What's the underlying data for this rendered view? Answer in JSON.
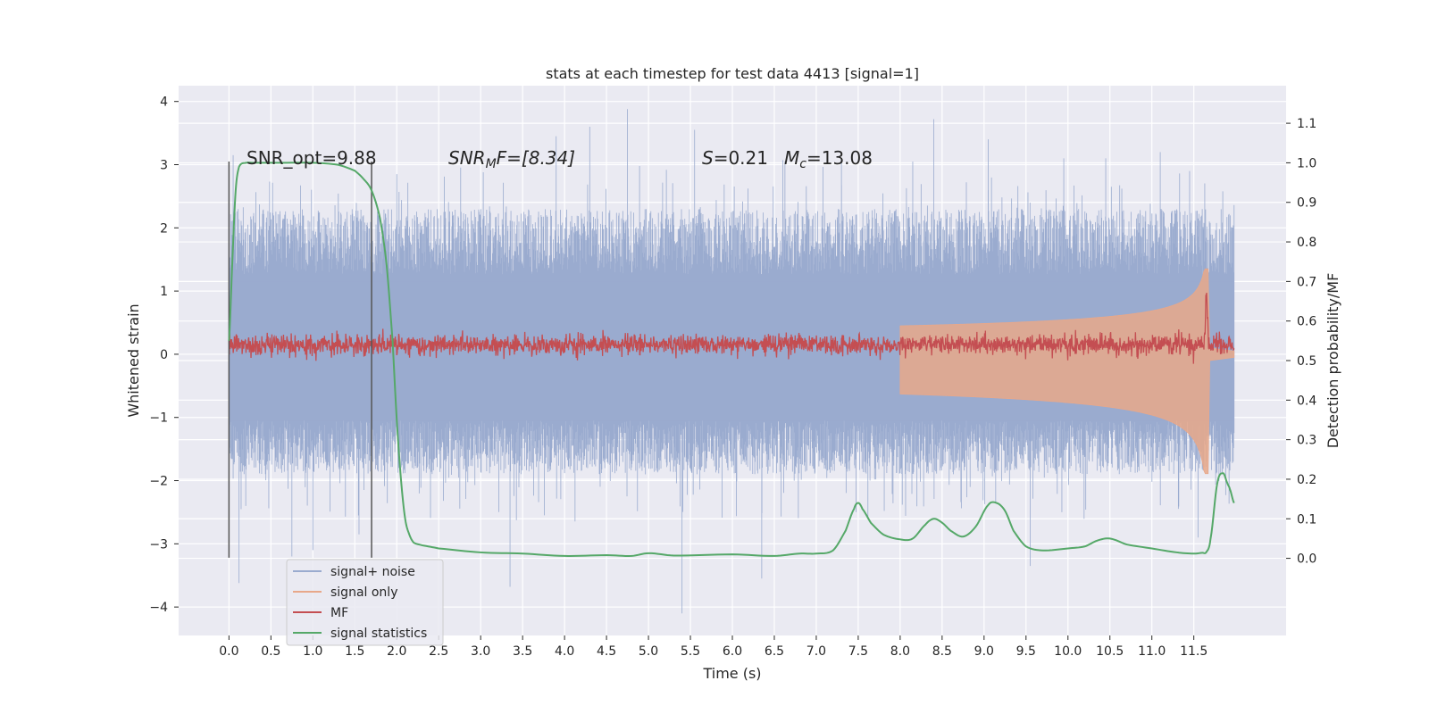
{
  "chart_data": {
    "type": "line",
    "title": "stats at each timestep for test data 4413 [signal=1]",
    "xlabel": "Time (s)",
    "ylabel_left": "Whitened strain",
    "ylabel_right": "Detection probability/MF",
    "xlim": [
      -0.6,
      12.6
    ],
    "ylim_left": [
      -4.45,
      4.25
    ],
    "ylim_right": [
      -0.195,
      1.195
    ],
    "x_ticks": [
      0.0,
      0.5,
      1.0,
      1.5,
      2.0,
      2.5,
      3.0,
      3.5,
      4.0,
      4.5,
      5.0,
      5.5,
      6.0,
      6.5,
      7.0,
      7.5,
      8.0,
      8.5,
      9.0,
      9.5,
      10.0,
      10.5,
      11.0,
      11.5
    ],
    "x_tick_labels": [
      "0.0",
      "0.5",
      "1.0",
      "1.5",
      "2.0",
      "2.5",
      "3.0",
      "3.5",
      "4.0",
      "4.5",
      "5.0",
      "5.5",
      "6.0",
      "6.5",
      "7.0",
      "7.5",
      "8.0",
      "8.5",
      "9.0",
      "9.5",
      "10.0",
      "10.5",
      "11.0",
      "11.5"
    ],
    "y_ticks_left": [
      4,
      3,
      2,
      1,
      0,
      -1,
      -2,
      -3,
      -4
    ],
    "y_tick_labels_left": [
      "4",
      "3",
      "2",
      "1",
      "0",
      "−1",
      "−2",
      "−3",
      "−4"
    ],
    "y_ticks_right": [
      1.1,
      1.0,
      0.9,
      0.8,
      0.7,
      0.6,
      0.5,
      0.4,
      0.3,
      0.2,
      0.1,
      0.0
    ],
    "y_tick_labels_right": [
      "1.1",
      "1.0",
      "0.9",
      "0.8",
      "0.7",
      "0.6",
      "0.5",
      "0.4",
      "0.3",
      "0.2",
      "0.1",
      "0.0"
    ],
    "grid": true,
    "legend_position": "lower-left",
    "annotations": {
      "snr_opt": "SNR_opt=9.88",
      "snr_mf_main": "SNR",
      "snr_mf_sub": "M",
      "snr_mf_rest": "F=[8.34]",
      "s_var": "S",
      "s_val": "=0.21",
      "mc_var": "M",
      "mc_sub": "c",
      "mc_val": "=13.08"
    },
    "vertical_lines_x": [
      0.0,
      1.7
    ],
    "series": [
      {
        "name": "signal+ noise",
        "color": "#9aabcf",
        "axis": "left",
        "x_range": [
          0.0,
          11.98
        ],
        "envelope_typical": [
          -1.9,
          2.3
        ],
        "peaks": [
          {
            "x": 0.12,
            "y": -3.62
          },
          {
            "x": 0.05,
            "y": 3.15
          },
          {
            "x": 0.2,
            "y": -2.4
          },
          {
            "x": 0.75,
            "y": -3.2
          },
          {
            "x": 1.0,
            "y": -3.1
          },
          {
            "x": 1.55,
            "y": -2.85
          },
          {
            "x": 2.0,
            "y": 2.85
          },
          {
            "x": 3.35,
            "y": -3.68
          },
          {
            "x": 3.9,
            "y": 3.45
          },
          {
            "x": 4.3,
            "y": 3.6
          },
          {
            "x": 4.75,
            "y": 3.88
          },
          {
            "x": 5.4,
            "y": -4.1
          },
          {
            "x": 5.55,
            "y": 3.55
          },
          {
            "x": 6.35,
            "y": -3.55
          },
          {
            "x": 7.3,
            "y": 3.1
          },
          {
            "x": 8.15,
            "y": 3.05
          },
          {
            "x": 8.4,
            "y": 3.72
          },
          {
            "x": 9.05,
            "y": 3.4
          },
          {
            "x": 9.55,
            "y": -3.35
          },
          {
            "x": 9.95,
            "y": 3.1
          },
          {
            "x": 10.45,
            "y": 3.1
          },
          {
            "x": 11.1,
            "y": 3.2
          },
          {
            "x": 11.45,
            "y": 2.9
          },
          {
            "x": 11.55,
            "y": -2.9
          }
        ]
      },
      {
        "name": "signal only",
        "color": "#e8a88a",
        "axis": "left",
        "chirp_start_x": 8.0,
        "chirp_merger_x": 11.67,
        "chirp_end_x": 11.98,
        "chirp_peak_amplitude": 1.35
      },
      {
        "name": "MF",
        "color": "#c44e52",
        "axis": "left",
        "x_range": [
          0.0,
          11.98
        ],
        "baseline": 0.15,
        "noise_amplitude": 0.18,
        "peak": {
          "x": 11.65,
          "y": 1.0
        }
      },
      {
        "name": "signal statistics",
        "color": "#55a868",
        "axis": "right",
        "x": [
          0.0,
          0.04,
          0.08,
          0.12,
          0.2,
          0.3,
          0.5,
          1.0,
          1.3,
          1.5,
          1.6,
          1.7,
          1.8,
          1.88,
          1.95,
          2.0,
          2.05,
          2.1,
          2.15,
          2.2,
          2.3,
          2.5,
          3.0,
          3.5,
          4.0,
          4.5,
          4.8,
          5.0,
          5.3,
          6.0,
          6.5,
          6.8,
          7.0,
          7.2,
          7.35,
          7.45,
          7.5,
          7.55,
          7.65,
          7.8,
          8.0,
          8.15,
          8.3,
          8.4,
          8.5,
          8.6,
          8.75,
          8.9,
          9.05,
          9.15,
          9.25,
          9.35,
          9.5,
          9.7,
          10.0,
          10.2,
          10.35,
          10.5,
          10.7,
          11.0,
          11.3,
          11.5,
          11.6,
          11.65,
          11.7,
          11.78,
          11.85,
          11.9,
          11.93,
          11.98
        ],
        "values": [
          0.55,
          0.75,
          0.93,
          0.99,
          1.0,
          1.0,
          1.0,
          1.0,
          0.995,
          0.98,
          0.96,
          0.93,
          0.86,
          0.74,
          0.55,
          0.35,
          0.2,
          0.1,
          0.06,
          0.04,
          0.033,
          0.025,
          0.015,
          0.012,
          0.006,
          0.008,
          0.006,
          0.013,
          0.007,
          0.01,
          0.006,
          0.012,
          0.012,
          0.02,
          0.07,
          0.125,
          0.14,
          0.125,
          0.09,
          0.06,
          0.048,
          0.05,
          0.085,
          0.1,
          0.09,
          0.07,
          0.055,
          0.08,
          0.135,
          0.14,
          0.12,
          0.07,
          0.03,
          0.02,
          0.025,
          0.03,
          0.045,
          0.05,
          0.035,
          0.025,
          0.015,
          0.012,
          0.014,
          0.016,
          0.05,
          0.19,
          0.215,
          0.19,
          0.175,
          0.14
        ]
      }
    ]
  }
}
